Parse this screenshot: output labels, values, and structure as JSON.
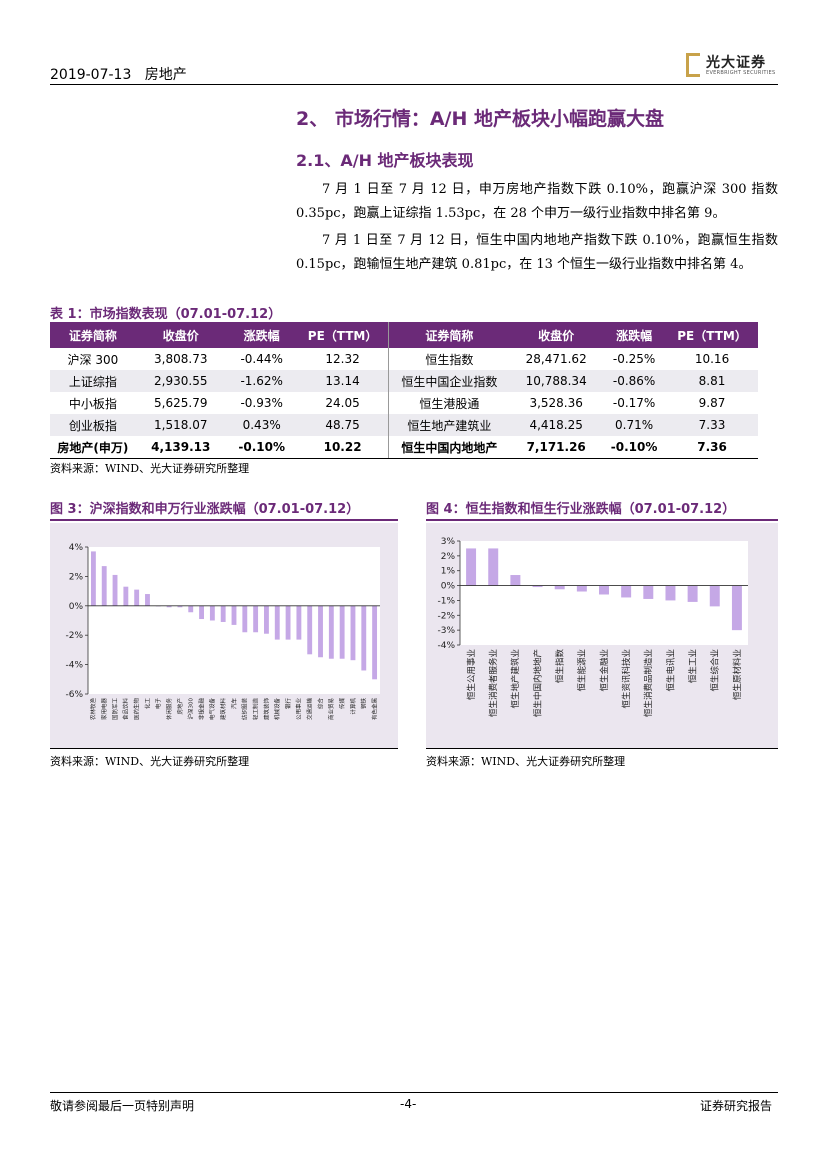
{
  "header": {
    "date": "2019-07-13",
    "section": "房地产",
    "logo_text": "光大证券",
    "logo_sub": "EVERBRIGHT SECURITIES"
  },
  "heading": {
    "h1": "2、 市场行情：A/H 地产板块小幅跑赢大盘",
    "h2": "2.1、A/H 地产板块表现"
  },
  "paragraphs": [
    "7 月 1 日至 7 月 12 日，申万房地产指数下跌 0.10%，跑赢沪深 300 指数 0.35pc，跑赢上证综指 1.53pc，在 28 个申万一级行业指数中排名第 9。",
    "7 月 1 日至 7 月 12 日，恒生中国内地地产指数下跌 0.10%，跑赢恒生指数 0.15pc，跑输恒生地产建筑 0.81pc，在 13 个恒生一级行业指数中排名第 4。"
  ],
  "table": {
    "title": "表 1：市场指数表现（07.01-07.12）",
    "headers": [
      "证券简称",
      "收盘价",
      "涨跌幅",
      "PE（TTM）",
      "证券简称",
      "收盘价",
      "涨跌幅",
      "PE（TTM）"
    ],
    "rows": [
      [
        "沪深 300",
        "3,808.73",
        "-0.44%",
        "12.32",
        "恒生指数",
        "28,471.62",
        "-0.25%",
        "10.16"
      ],
      [
        "上证综指",
        "2,930.55",
        "-1.62%",
        "13.14",
        "恒生中国企业指数",
        "10,788.34",
        "-0.86%",
        "8.81"
      ],
      [
        "中小板指",
        "5,625.79",
        "-0.93%",
        "24.05",
        "恒生港股通",
        "3,528.36",
        "-0.17%",
        "9.87"
      ],
      [
        "创业板指",
        "1,518.07",
        "0.43%",
        "48.75",
        "恒生地产建筑业",
        "4,418.25",
        "0.71%",
        "7.33"
      ],
      [
        "房地产(申万)",
        "4,139.13",
        "-0.10%",
        "10.22",
        "恒生中国内地地产",
        "7,171.26",
        "-0.10%",
        "7.36"
      ]
    ],
    "source": "资料来源：WIND、光大证券研究所整理"
  },
  "chart_data": [
    {
      "type": "bar",
      "title": "图 3：沪深指数和申万行业涨跌幅（07.01-07.12）",
      "categories": [
        "农林牧渔",
        "家用电器",
        "国防军工",
        "食品饮料",
        "医药生物",
        "化工",
        "电子",
        "休闲服务",
        "房地产",
        "沪深300",
        "非银金融",
        "电气设备",
        "建筑材料",
        "汽车",
        "纺织服装",
        "轻工制造",
        "建筑装饰",
        "机械设备",
        "银行",
        "公用事业",
        "交通运输",
        "综合",
        "商业贸易",
        "传媒",
        "计算机",
        "钢铁",
        "有色金属"
      ],
      "values": [
        3.7,
        2.7,
        2.1,
        1.3,
        1.1,
        0.8,
        0.0,
        -0.1,
        -0.1,
        -0.44,
        -0.9,
        -1.0,
        -1.1,
        -1.3,
        -1.8,
        -1.8,
        -1.9,
        -2.3,
        -2.3,
        -2.3,
        -3.3,
        -3.5,
        -3.6,
        -3.6,
        -3.7,
        -4.4,
        -5.0
      ],
      "ylim": [
        -6,
        4
      ],
      "yticks": [
        "4%",
        "2%",
        "0%",
        "-2%",
        "-4%",
        "-6%"
      ],
      "source": "资料来源：WIND、光大证券研究所整理"
    },
    {
      "type": "bar",
      "title": "图 4：恒生指数和恒生行业涨跌幅（07.01-07.12）",
      "categories": [
        "恒生公用事业",
        "恒生消费者服务业",
        "恒生地产建筑业",
        "恒生中国内地地产",
        "恒生指数",
        "恒生能源业",
        "恒生金融业",
        "恒生资讯科技业",
        "恒生消费品制造业",
        "恒生电讯业",
        "恒生工业",
        "恒生综合业",
        "恒生原材料业"
      ],
      "values": [
        2.5,
        2.5,
        0.71,
        -0.1,
        -0.25,
        -0.4,
        -0.6,
        -0.8,
        -0.9,
        -1.0,
        -1.1,
        -1.4,
        -3.0
      ],
      "ylim": [
        -4,
        3
      ],
      "yticks": [
        "3%",
        "2%",
        "1%",
        "0%",
        "-1%",
        "-2%",
        "-3%",
        "-4%"
      ],
      "source": "资料来源：WIND、光大证券研究所整理"
    }
  ],
  "footer": {
    "left": "敬请参阅最后一页特别声明",
    "center": "-4-",
    "right": "证券研究报告"
  },
  "colors": {
    "accent": "#6b2a78",
    "bar": "#c5a8e6",
    "panel": "#ebe6ef"
  }
}
